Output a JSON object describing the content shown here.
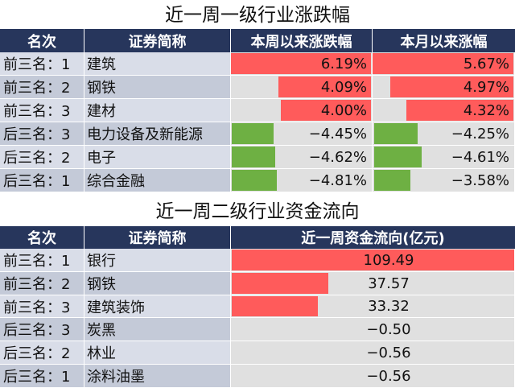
{
  "colors": {
    "header_bg": "#27365c",
    "row_odd": "#d9dde8",
    "row_even": "#c4cad8",
    "col_bg": "#e0e0e0",
    "pos_bar": "#ff5b5b",
    "neg_bar": "#6eb043"
  },
  "table1": {
    "title": "近一周一级行业涨跌幅",
    "headers": [
      "名次",
      "证券简称",
      "本周以来涨跌幅",
      "本月以来涨幅"
    ],
    "rows": [
      {
        "rank": "前三名：1",
        "name": "建筑",
        "week": "6.19%",
        "month": "5.67%"
      },
      {
        "rank": "前三名：2",
        "name": "钢铁",
        "week": "4.09%",
        "month": "4.97%"
      },
      {
        "rank": "前三名：3",
        "name": "建材",
        "week": "4.00%",
        "month": "4.32%"
      },
      {
        "rank": "后三名：3",
        "name": "电力设备及新能源",
        "week": "-4.45%",
        "month": "-4.25%"
      },
      {
        "rank": "后三名：2",
        "name": "电子",
        "week": "-4.62%",
        "month": "-4.61%"
      },
      {
        "rank": "后三名：1",
        "name": "综合金融",
        "week": "-4.81%",
        "month": "-3.58%"
      }
    ]
  },
  "table2": {
    "title": "近一周二级行业资金流向",
    "headers": [
      "名次",
      "证券简称",
      "近一周资金流向(亿元)"
    ],
    "rows": [
      {
        "rank": "前三名：1",
        "name": "银行",
        "flow": "109.49"
      },
      {
        "rank": "前三名：2",
        "name": "钢铁",
        "flow": "37.57"
      },
      {
        "rank": "前三名：3",
        "name": "建筑装饰",
        "flow": "33.32"
      },
      {
        "rank": "后三名：3",
        "name": "炭黑",
        "flow": "-0.50"
      },
      {
        "rank": "后三名：2",
        "name": "林业",
        "flow": "-0.56"
      },
      {
        "rank": "后三名：1",
        "name": "涂料油墨",
        "flow": "-0.56"
      }
    ]
  }
}
